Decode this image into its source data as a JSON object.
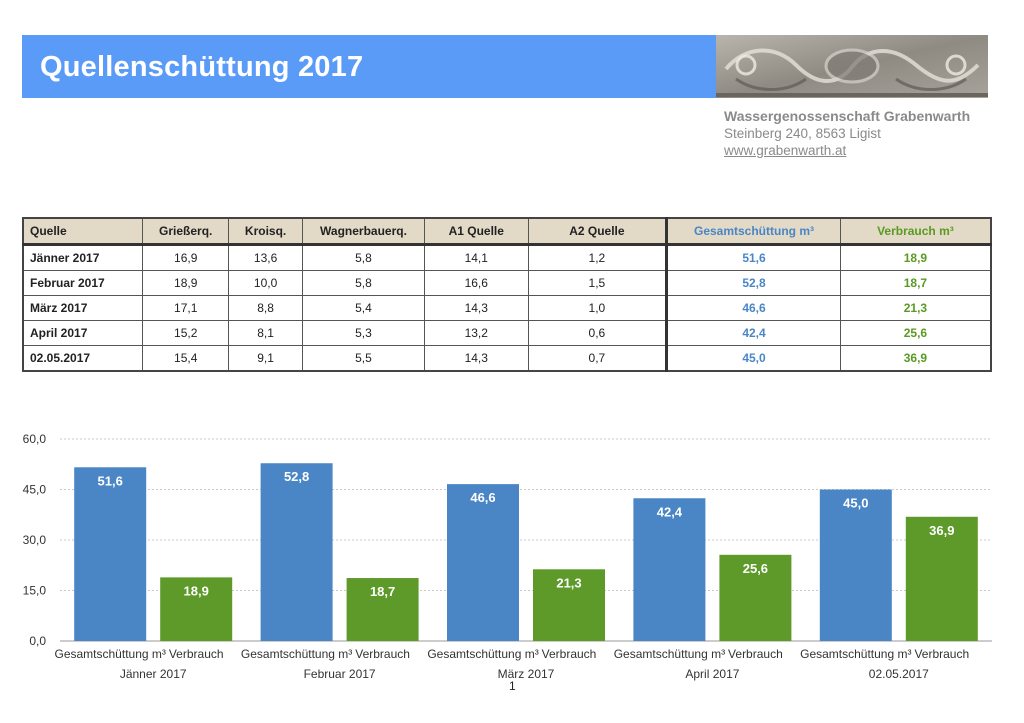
{
  "header": {
    "title": "Quellenschüttung 2017"
  },
  "organization": {
    "name": "Wassergenossenschaft Grabenwarth",
    "address": "Steinberg 240, 8563 Ligist",
    "website": "www.grabenwarth.at"
  },
  "table": {
    "columns": [
      "Quelle",
      "Grießerq.",
      "Kroisq.",
      "Wagnerbauerq.",
      "A1 Quelle",
      "A2 Quelle",
      "Gesamtschüttung m³",
      "Verbrauch m³"
    ],
    "rows": [
      [
        "Jänner 2017",
        "16,9",
        "13,6",
        "5,8",
        "14,1",
        "1,2",
        "51,6",
        "18,9"
      ],
      [
        "Februar 2017",
        "18,9",
        "10,0",
        "5,8",
        "16,6",
        "1,5",
        "52,8",
        "18,7"
      ],
      [
        "März 2017",
        "17,1",
        "8,8",
        "5,4",
        "14,3",
        "1,0",
        "46,6",
        "21,3"
      ],
      [
        "April 2017",
        "15,2",
        "8,1",
        "5,3",
        "13,2",
        "0,6",
        "42,4",
        "25,6"
      ],
      [
        "02.05.2017",
        "15,4",
        "9,1",
        "5,5",
        "14,3",
        "0,7",
        "45,0",
        "36,9"
      ]
    ]
  },
  "colors": {
    "banner": "#5b9bf8",
    "series_total": "#4a86c5",
    "series_usage": "#5e9a2a"
  },
  "chart_data": {
    "type": "bar",
    "categories": [
      "Jänner 2017",
      "Februar 2017",
      "März 2017",
      "April 2017",
      "02.05.2017"
    ],
    "series": [
      {
        "name": "Gesamtschüttung m³",
        "values": [
          51.6,
          52.8,
          46.6,
          42.4,
          45.0
        ],
        "labels": [
          "51,6",
          "52,8",
          "46,6",
          "42,4",
          "45,0"
        ]
      },
      {
        "name": "Verbrauch",
        "values": [
          18.9,
          18.7,
          21.3,
          25.6,
          36.9
        ],
        "labels": [
          "18,9",
          "18,7",
          "21,3",
          "25,6",
          "36,9"
        ]
      }
    ],
    "yticks": [
      "0,0",
      "15,0",
      "30,0",
      "45,0",
      "60,0"
    ],
    "ylim": [
      0,
      60
    ],
    "grid": true,
    "data_labels": true
  },
  "footer": {
    "page_number": "1"
  }
}
